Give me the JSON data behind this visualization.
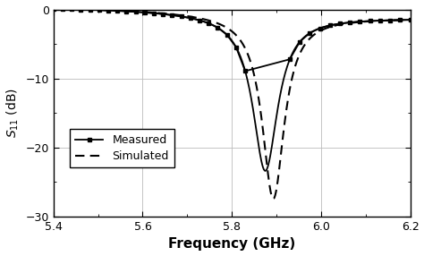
{
  "title": "",
  "xlabel": "Frequency (GHz)",
  "ylabel": "$S_{11}$ (dB)",
  "xlim": [
    5.4,
    6.2
  ],
  "ylim": [
    -30,
    0
  ],
  "xticks": [
    5.4,
    5.6,
    5.8,
    6.0,
    6.2
  ],
  "yticks": [
    0,
    -10,
    -20,
    -30
  ],
  "measured_color": "#000000",
  "simulated_color": "#000000",
  "background_color": "#ffffff",
  "grid_color": "#bbbbbb",
  "resonance_freq_measured": 5.875,
  "resonance_freq_simulated": 5.893,
  "resonance_depth_measured": -22.5,
  "resonance_depth_simulated": -26.5,
  "bandwidth_measured": 0.068,
  "bandwidth_simulated": 0.06,
  "legend_labels": [
    "Measured",
    "Simulated"
  ]
}
